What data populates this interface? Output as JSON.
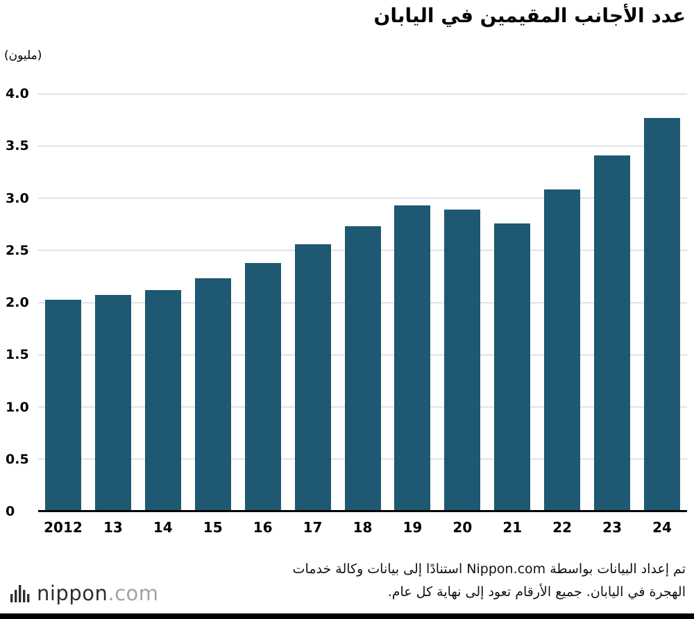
{
  "title": "عدد الأجانب المقيمين في اليابان",
  "unit_label": "(مليون)",
  "source_note": {
    "line1": "تم إعداد البيانات بواسطة Nippon.com استنادًا إلى بيانات وكالة خدمات",
    "line2": "الهجرة في اليابان. جميع الأرقام تعود إلى نهاية كل عام."
  },
  "logo": {
    "name": "nippon",
    "domain": ".com"
  },
  "colors": {
    "bar": "#1e5872",
    "grid": "#c9c9c9",
    "axis": "#000000"
  },
  "chart_data": {
    "type": "bar",
    "title": "عدد الأجانب المقيمين في اليابان",
    "xlabel": "",
    "ylabel": "(مليون)",
    "categories": [
      "2012",
      "13",
      "14",
      "15",
      "16",
      "17",
      "18",
      "19",
      "20",
      "21",
      "22",
      "23",
      "24"
    ],
    "values": [
      2.03,
      2.07,
      2.12,
      2.23,
      2.38,
      2.56,
      2.73,
      2.93,
      2.89,
      2.76,
      3.08,
      3.41,
      3.77
    ],
    "ylim": [
      0,
      4.0
    ],
    "yticks": [
      0,
      0.5,
      1.0,
      1.5,
      2.0,
      2.5,
      3.0,
      3.5,
      4.0
    ],
    "grid": true,
    "legend_position": "none"
  }
}
